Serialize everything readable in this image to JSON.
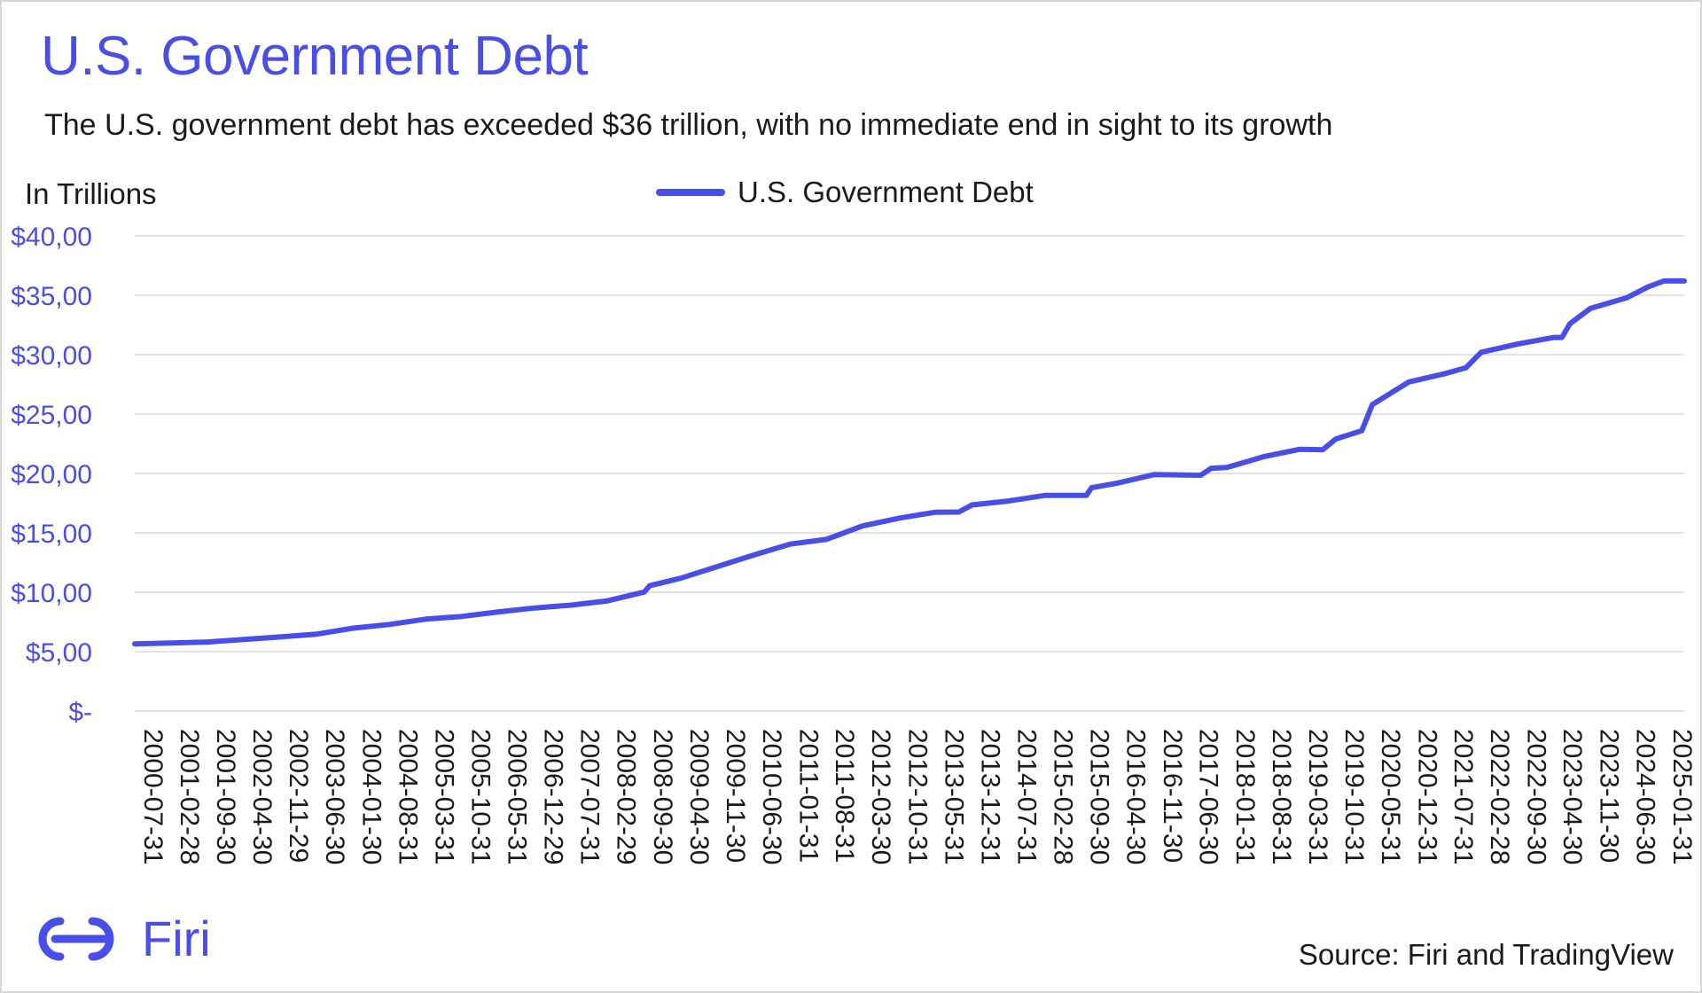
{
  "header": {
    "title": "U.S. Government Debt",
    "subtitle": "The U.S. government debt has exceeded $36 trillion, with no immediate end in sight to its growth"
  },
  "footer": {
    "brand_name": "Firi",
    "brand_icon": "firi-logo-icon",
    "source": "Source: Firi and TradingView"
  },
  "colors": {
    "accent": "#4a4ee8",
    "line": "#4a4ee8",
    "grid": "#d9d9d9",
    "text": "#1a1a1a"
  },
  "chart_data": {
    "type": "line",
    "title": "U.S. Government Debt",
    "ylabel": "In Trillions",
    "xlabel": "",
    "ylim": [
      0,
      40
    ],
    "grid": true,
    "legend_position": "top-center",
    "y_ticks": [
      {
        "value": 0,
        "label": "$-"
      },
      {
        "value": 5,
        "label": "$5,00"
      },
      {
        "value": 10,
        "label": "$10,00"
      },
      {
        "value": 15,
        "label": "$15,00"
      },
      {
        "value": 20,
        "label": "$20,00"
      },
      {
        "value": 25,
        "label": "$25,00"
      },
      {
        "value": 30,
        "label": "$30,00"
      },
      {
        "value": 35,
        "label": "$35,00"
      },
      {
        "value": 40,
        "label": "$40,00"
      }
    ],
    "x_range": [
      "2000-07-31",
      "2025-05-31"
    ],
    "x_ticks": [
      "2000-07-31",
      "2001-02-28",
      "2001-09-30",
      "2002-04-30",
      "2002-11-29",
      "2003-06-30",
      "2004-01-30",
      "2004-08-31",
      "2005-03-31",
      "2005-10-31",
      "2006-05-31",
      "2006-12-29",
      "2007-07-31",
      "2008-02-29",
      "2008-09-30",
      "2009-04-30",
      "2009-11-30",
      "2010-06-30",
      "2011-01-31",
      "2011-08-31",
      "2012-03-30",
      "2012-10-31",
      "2013-05-31",
      "2013-12-31",
      "2014-07-31",
      "2015-02-28",
      "2015-09-30",
      "2016-04-30",
      "2016-11-30",
      "2017-06-30",
      "2018-01-31",
      "2018-08-31",
      "2019-03-31",
      "2019-10-31",
      "2020-05-31",
      "2020-12-31",
      "2021-07-31",
      "2022-02-28",
      "2022-09-30",
      "2023-04-30",
      "2023-11-30",
      "2024-06-30",
      "2025-01-31"
    ],
    "series": [
      {
        "name": "U.S. Government Debt",
        "points": [
          [
            "2000-07-31",
            5.66
          ],
          [
            "2001-02-28",
            5.73
          ],
          [
            "2001-09-30",
            5.81
          ],
          [
            "2002-04-30",
            6.02
          ],
          [
            "2002-11-29",
            6.24
          ],
          [
            "2003-06-30",
            6.48
          ],
          [
            "2004-01-30",
            6.98
          ],
          [
            "2004-08-31",
            7.29
          ],
          [
            "2005-03-31",
            7.74
          ],
          [
            "2005-10-31",
            7.97
          ],
          [
            "2006-05-31",
            8.35
          ],
          [
            "2006-12-29",
            8.68
          ],
          [
            "2007-07-31",
            8.92
          ],
          [
            "2008-02-29",
            9.28
          ],
          [
            "2008-09-30",
            10.02
          ],
          [
            "2008-10-31",
            10.55
          ],
          [
            "2009-04-30",
            11.18
          ],
          [
            "2009-11-30",
            12.16
          ],
          [
            "2010-06-30",
            13.13
          ],
          [
            "2011-01-31",
            14.05
          ],
          [
            "2011-08-31",
            14.45
          ],
          [
            "2012-03-30",
            15.58
          ],
          [
            "2012-10-31",
            16.24
          ],
          [
            "2013-05-31",
            16.74
          ],
          [
            "2013-10-15",
            16.75
          ],
          [
            "2013-12-31",
            17.35
          ],
          [
            "2014-07-31",
            17.68
          ],
          [
            "2015-02-28",
            18.15
          ],
          [
            "2015-10-31",
            18.15
          ],
          [
            "2015-11-30",
            18.8
          ],
          [
            "2016-04-30",
            19.19
          ],
          [
            "2016-11-30",
            19.9
          ],
          [
            "2017-08-31",
            19.85
          ],
          [
            "2017-10-31",
            20.44
          ],
          [
            "2018-01-31",
            20.5
          ],
          [
            "2018-08-31",
            21.4
          ],
          [
            "2019-03-31",
            22.03
          ],
          [
            "2019-08-15",
            22.0
          ],
          [
            "2019-10-31",
            22.9
          ],
          [
            "2020-03-31",
            23.6
          ],
          [
            "2020-05-31",
            25.8
          ],
          [
            "2020-12-31",
            27.7
          ],
          [
            "2021-07-31",
            28.4
          ],
          [
            "2021-11-30",
            28.9
          ],
          [
            "2022-02-28",
            30.2
          ],
          [
            "2022-09-30",
            30.9
          ],
          [
            "2023-04-30",
            31.45
          ],
          [
            "2023-06-15",
            31.45
          ],
          [
            "2023-07-31",
            32.6
          ],
          [
            "2023-11-30",
            33.9
          ],
          [
            "2024-06-30",
            34.8
          ],
          [
            "2024-10-31",
            35.7
          ],
          [
            "2025-01-31",
            36.2
          ],
          [
            "2025-05-31",
            36.2
          ]
        ]
      }
    ]
  }
}
